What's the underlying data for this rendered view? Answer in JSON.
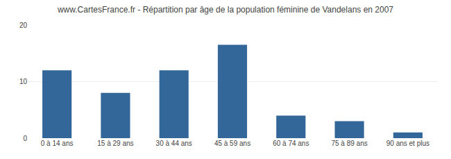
{
  "chart_data": {
    "type": "bar",
    "title": "www.CartesFrance.fr - Répartition par âge de la population féminine de Vandelans en 2007",
    "categories": [
      "0 à 14 ans",
      "15 à 29 ans",
      "30 à 44 ans",
      "45 à 59 ans",
      "60 à 74 ans",
      "75 à 89 ans",
      "90 ans et plus"
    ],
    "values": [
      12,
      8,
      12,
      16.5,
      4,
      3,
      1
    ],
    "color": "#336699",
    "ylim": [
      0,
      20
    ],
    "yticks": [
      0,
      10,
      20
    ],
    "grid": true
  }
}
